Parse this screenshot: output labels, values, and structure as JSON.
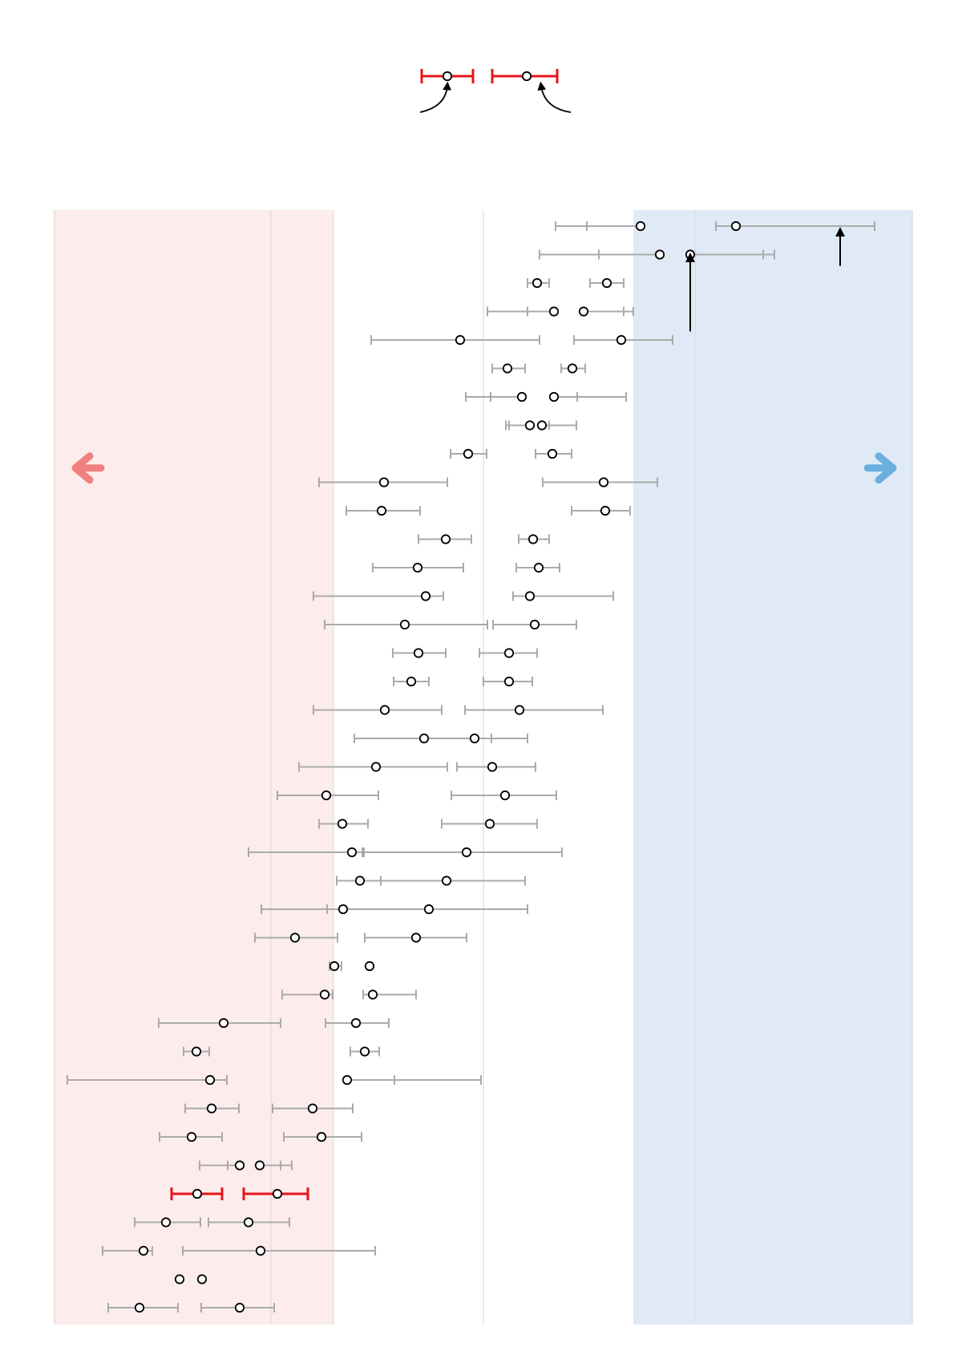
{
  "chart_data": {
    "type": "scatter",
    "title": "",
    "xlabel": "",
    "ylabel": "",
    "xlim": [
      0,
      1070
    ],
    "grid": true,
    "gridlines_x": [
      270,
      348,
      535,
      800
    ],
    "regions": [
      {
        "name": "left-region",
        "x0": 0,
        "x1": 348,
        "color": "#fdecec"
      },
      {
        "name": "right-region",
        "x0": 722,
        "x1": 1070,
        "color": "#e0eaf6"
      }
    ],
    "colors": {
      "interval": "#aaaaaa",
      "highlight": "#e8141c",
      "left_arrow": "#f08080",
      "right_arrow": "#6aafe0",
      "annotation": "#000000"
    },
    "legend": {
      "position": "top-center",
      "items": [
        {
          "x": 490,
          "lo": 458,
          "hi": 522
        },
        {
          "x": 589,
          "lo": 546,
          "hi": 627
        }
      ]
    },
    "rows": [
      {
        "points": [
          {
            "x": 731,
            "lo": 625,
            "hi": 664
          },
          {
            "x": 850,
            "lo": 825,
            "hi": 1023
          }
        ]
      },
      {
        "points": [
          {
            "x": 755,
            "lo": 605,
            "hi": 679
          },
          {
            "x": 793,
            "lo": 884,
            "hi": 898
          }
        ]
      },
      {
        "points": [
          {
            "x": 602,
            "lo": 590,
            "hi": 617
          },
          {
            "x": 689,
            "lo": 668,
            "hi": 710
          }
        ]
      },
      {
        "points": [
          {
            "x": 623,
            "lo": 540,
            "hi": 590
          },
          {
            "x": 660,
            "lo": 710,
            "hi": 722
          }
        ]
      },
      {
        "points": [
          {
            "x": 506,
            "lo": 395,
            "hi": 605
          },
          {
            "x": 707,
            "lo": 648,
            "hi": 771
          }
        ]
      },
      {
        "points": [
          {
            "x": 565,
            "lo": 546,
            "hi": 587
          },
          {
            "x": 646,
            "lo": 632,
            "hi": 662
          }
        ]
      },
      {
        "points": [
          {
            "x": 583,
            "lo": 513,
            "hi": 544
          },
          {
            "x": 623,
            "lo": 652,
            "hi": 713
          }
        ]
      },
      {
        "points": [
          {
            "x": 593,
            "lo": 563,
            "hi": 567
          },
          {
            "x": 608,
            "lo": 617,
            "hi": 651
          }
        ]
      },
      {
        "points": [
          {
            "x": 516,
            "lo": 494,
            "hi": 539
          },
          {
            "x": 621,
            "lo": 600,
            "hi": 645
          }
        ]
      },
      {
        "points": [
          {
            "x": 411,
            "lo": 330,
            "hi": 490
          },
          {
            "x": 685,
            "lo": 609,
            "hi": 752
          }
        ]
      },
      {
        "points": [
          {
            "x": 408,
            "lo": 364,
            "hi": 456
          },
          {
            "x": 687,
            "lo": 645,
            "hi": 718
          }
        ]
      },
      {
        "points": [
          {
            "x": 488,
            "lo": 454,
            "hi": 520
          },
          {
            "x": 597,
            "lo": 579,
            "hi": 617
          }
        ]
      },
      {
        "points": [
          {
            "x": 453,
            "lo": 397,
            "hi": 510
          },
          {
            "x": 604,
            "lo": 576,
            "hi": 630
          }
        ]
      },
      {
        "points": [
          {
            "x": 463,
            "lo": 323,
            "hi": 485
          },
          {
            "x": 593,
            "lo": 572,
            "hi": 697
          }
        ]
      },
      {
        "points": [
          {
            "x": 437,
            "lo": 337,
            "hi": 540
          },
          {
            "x": 599,
            "lo": 547,
            "hi": 651
          }
        ]
      },
      {
        "points": [
          {
            "x": 454,
            "lo": 422,
            "hi": 488
          },
          {
            "x": 567,
            "lo": 530,
            "hi": 602
          }
        ]
      },
      {
        "points": [
          {
            "x": 445,
            "lo": 423,
            "hi": 467
          },
          {
            "x": 567,
            "lo": 535,
            "hi": 596
          }
        ]
      },
      {
        "points": [
          {
            "x": 412,
            "lo": 323,
            "hi": 483
          },
          {
            "x": 580,
            "lo": 512,
            "hi": 684
          }
        ]
      },
      {
        "points": [
          {
            "x": 461,
            "lo": 374,
            "hi": 545
          },
          {
            "x": 524,
            "lo": 545,
            "hi": 590
          }
        ]
      },
      {
        "points": [
          {
            "x": 401,
            "lo": 305,
            "hi": 490
          },
          {
            "x": 546,
            "lo": 502,
            "hi": 600
          }
        ]
      },
      {
        "points": [
          {
            "x": 339,
            "lo": 278,
            "hi": 404
          },
          {
            "x": 562,
            "lo": 495,
            "hi": 626
          }
        ]
      },
      {
        "points": [
          {
            "x": 359,
            "lo": 330,
            "hi": 391
          },
          {
            "x": 543,
            "lo": 483,
            "hi": 602
          }
        ]
      },
      {
        "points": [
          {
            "x": 371,
            "lo": 242,
            "hi": 386
          },
          {
            "x": 514,
            "lo": 384,
            "hi": 633
          }
        ]
      },
      {
        "points": [
          {
            "x": 381,
            "lo": 352,
            "hi": 407
          },
          {
            "x": 489,
            "lo": 407,
            "hi": 587
          }
        ]
      },
      {
        "points": [
          {
            "x": 360,
            "lo": 258,
            "hi": 340
          },
          {
            "x": 467,
            "lo": 340,
            "hi": 590
          }
        ]
      },
      {
        "points": [
          {
            "x": 300,
            "lo": 250,
            "hi": 353
          },
          {
            "x": 451,
            "lo": 387,
            "hi": 514
          }
        ]
      },
      {
        "points": [
          {
            "x": 349,
            "lo": 343,
            "hi": 358
          },
          {
            "x": 393,
            "lo": 391,
            "hi": 395
          }
        ]
      },
      {
        "points": [
          {
            "x": 337,
            "lo": 284,
            "hi": 347
          },
          {
            "x": 397,
            "lo": 385,
            "hi": 451
          }
        ]
      },
      {
        "points": [
          {
            "x": 211,
            "lo": 130,
            "hi": 282
          },
          {
            "x": 376,
            "lo": 338,
            "hi": 417
          }
        ]
      },
      {
        "points": [
          {
            "x": 177,
            "lo": 161,
            "hi": 193
          },
          {
            "x": 387,
            "lo": 369,
            "hi": 405
          }
        ]
      },
      {
        "points": [
          {
            "x": 194,
            "lo": 16,
            "hi": 215
          },
          {
            "x": 365,
            "lo": 424,
            "hi": 532
          }
        ]
      },
      {
        "points": [
          {
            "x": 196,
            "lo": 163,
            "hi": 230
          },
          {
            "x": 322,
            "lo": 272,
            "hi": 372
          }
        ]
      },
      {
        "points": [
          {
            "x": 171,
            "lo": 131,
            "hi": 209
          },
          {
            "x": 333,
            "lo": 286,
            "hi": 383
          }
        ]
      },
      {
        "points": [
          {
            "x": 231,
            "lo": 181,
            "hi": 216
          },
          {
            "x": 256,
            "lo": 282,
            "hi": 296
          }
        ]
      },
      {
        "points": [
          {
            "x": 178,
            "lo": 146,
            "hi": 209
          },
          {
            "x": 278,
            "lo": 236,
            "hi": 316
          }
        ],
        "highlight": true
      },
      {
        "points": [
          {
            "x": 139,
            "lo": 100,
            "hi": 182
          },
          {
            "x": 242,
            "lo": 192,
            "hi": 293
          }
        ]
      },
      {
        "points": [
          {
            "x": 111,
            "lo": 60,
            "hi": 122
          },
          {
            "x": 257,
            "lo": 160,
            "hi": 400
          }
        ]
      },
      {
        "points": [
          {
            "x": 156,
            "lo": 156,
            "hi": 156
          },
          {
            "x": 184,
            "lo": 184,
            "hi": 184
          }
        ]
      },
      {
        "points": [
          {
            "x": 106,
            "lo": 67,
            "hi": 154
          },
          {
            "x": 231,
            "lo": 183,
            "hi": 274
          }
        ]
      }
    ],
    "annotations": [
      {
        "type": "arrow-up",
        "x": 793,
        "from_row": 3.7,
        "to_row": 1.1
      },
      {
        "type": "arrow-up",
        "x": 980,
        "from_row": 1.4,
        "to_row": 0.2
      },
      {
        "type": "arrow-left",
        "side": "left",
        "row": 8.5
      },
      {
        "type": "arrow-right",
        "side": "right",
        "row": 8.5
      },
      {
        "type": "curved-arrow",
        "target": "legend-0"
      },
      {
        "type": "curved-arrow",
        "target": "legend-1"
      }
    ]
  }
}
